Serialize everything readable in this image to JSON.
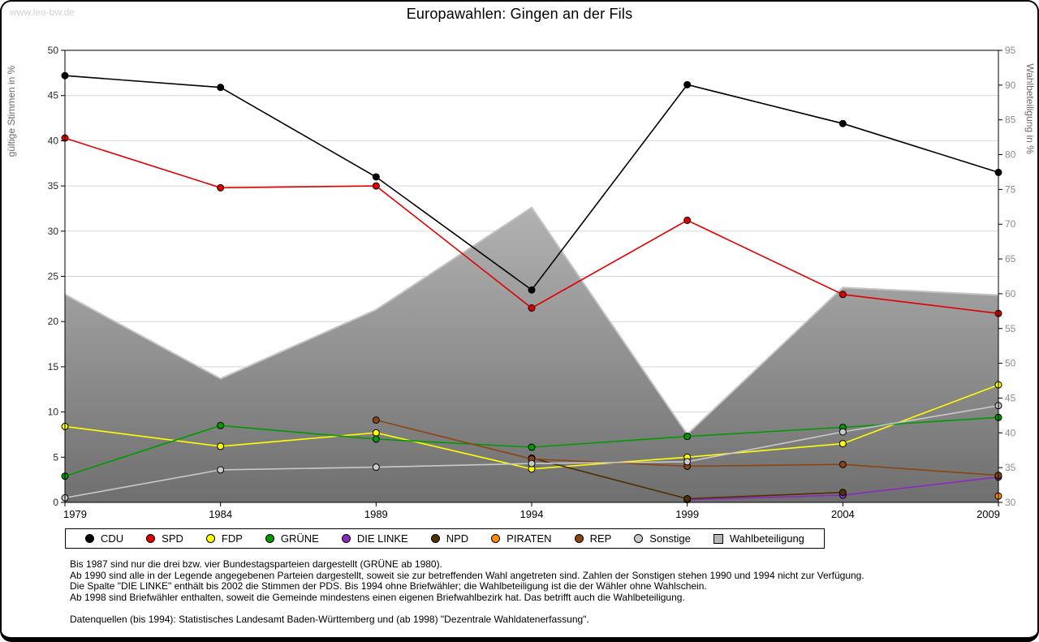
{
  "page": {
    "watermark": "www.leo-bw.de",
    "title": "Europawahlen: Gingen an der Fils"
  },
  "chart_data": {
    "type": "line",
    "title": "Europawahlen: Gingen an der Fils",
    "x": [
      1979,
      1984,
      1989,
      1994,
      1999,
      2004,
      2009
    ],
    "left_axis": {
      "label": "gültige Stimmen in %",
      "min": 0,
      "max": 50,
      "tick_step": 5
    },
    "right_axis": {
      "label": "Wahlbeteiligung in %",
      "min": 30,
      "max": 95,
      "tick_step": 5
    },
    "grid": "horizontal",
    "legend_position": "bottom",
    "series": [
      {
        "name": "CDU",
        "color": "#000000",
        "axis": "left",
        "values": [
          47.2,
          45.9,
          36.0,
          23.5,
          46.2,
          41.9,
          36.5
        ]
      },
      {
        "name": "SPD",
        "color": "#e10000",
        "axis": "left",
        "values": [
          40.3,
          34.8,
          35.0,
          21.5,
          31.2,
          23.0,
          20.9
        ]
      },
      {
        "name": "FDP",
        "color": "#ffff00",
        "axis": "left",
        "values": [
          8.4,
          6.2,
          7.7,
          3.7,
          5.0,
          6.5,
          13.0
        ]
      },
      {
        "name": "GRÜNE",
        "color": "#009a00",
        "axis": "left",
        "values": [
          2.9,
          8.5,
          7.0,
          6.1,
          7.3,
          8.3,
          9.4
        ]
      },
      {
        "name": "DIE LINKE",
        "color": "#8a2bbe",
        "axis": "left",
        "values": [
          null,
          null,
          null,
          null,
          0.3,
          0.8,
          2.8
        ]
      },
      {
        "name": "NPD",
        "color": "#4f3000",
        "axis": "left",
        "values": [
          null,
          null,
          null,
          4.9,
          0.4,
          1.1,
          null
        ]
      },
      {
        "name": "PIRATEN",
        "color": "#ff8c00",
        "axis": "left",
        "values": [
          null,
          null,
          null,
          null,
          null,
          null,
          0.7
        ]
      },
      {
        "name": "REP",
        "color": "#8b4513",
        "axis": "left",
        "values": [
          null,
          null,
          9.1,
          4.8,
          4.0,
          4.2,
          3.0
        ]
      },
      {
        "name": "Sonstige",
        "color": "#c9c9c9",
        "axis": "left",
        "values": [
          0.5,
          3.6,
          3.9,
          4.3,
          4.5,
          7.8,
          10.7
        ]
      }
    ],
    "area_series": {
      "name": "Wahlbeteiligung",
      "axis": "right",
      "values": [
        59.9,
        47.8,
        57.7,
        72.4,
        39.8,
        60.9,
        59.8
      ],
      "fill_top": "#d6d6d6",
      "fill_bottom": "#6f6f6f",
      "edge_color": "#c4c4c4"
    }
  },
  "legend": {
    "items": [
      {
        "label": "CDU",
        "color": "#000000",
        "shape": "circle"
      },
      {
        "label": "SPD",
        "color": "#e10000",
        "shape": "circle"
      },
      {
        "label": "FDP",
        "color": "#ffff00",
        "shape": "circle"
      },
      {
        "label": "GRÜNE",
        "color": "#009a00",
        "shape": "circle"
      },
      {
        "label": "DIE LINKE",
        "color": "#8a2bbe",
        "shape": "circle"
      },
      {
        "label": "NPD",
        "color": "#4f3000",
        "shape": "circle"
      },
      {
        "label": "PIRATEN",
        "color": "#ff8c00",
        "shape": "circle"
      },
      {
        "label": "REP",
        "color": "#8b4513",
        "shape": "circle"
      },
      {
        "label": "Sonstige",
        "color": "#c9c9c9",
        "shape": "circle"
      },
      {
        "label": "Wahlbeteiligung",
        "color": "#b5b5b5",
        "shape": "square"
      }
    ]
  },
  "notes": [
    "Bis 1987 sind nur die drei bzw. vier Bundestagsparteien dargestellt (GRÜNE ab 1980).",
    "Ab 1990 sind alle in der Legende angegebenen Parteien dargestellt, soweit sie zur betreffenden Wahl angetreten sind. Zahlen der Sonstigen stehen 1990 und 1994 nicht zur Verfügung.",
    "Die Spalte \"DIE LINKE\" enthält bis 2002 die Stimmen der PDS. Bis 1994 ohne Briefwähler; die Wahlbeteiligung ist die der Wähler ohne Wahlschein.",
    "Ab 1998 sind Briefwähler enthalten, soweit die Gemeinde mindestens einen eigenen Briefwahlbezirk hat. Das betrifft auch die Wahlbeteiligung.",
    "",
    "Datenquellen (bis 1994): Statistisches Landesamt Baden-Württemberg und (ab 1998) \"Dezentrale Wahldatenerfassung\"."
  ]
}
